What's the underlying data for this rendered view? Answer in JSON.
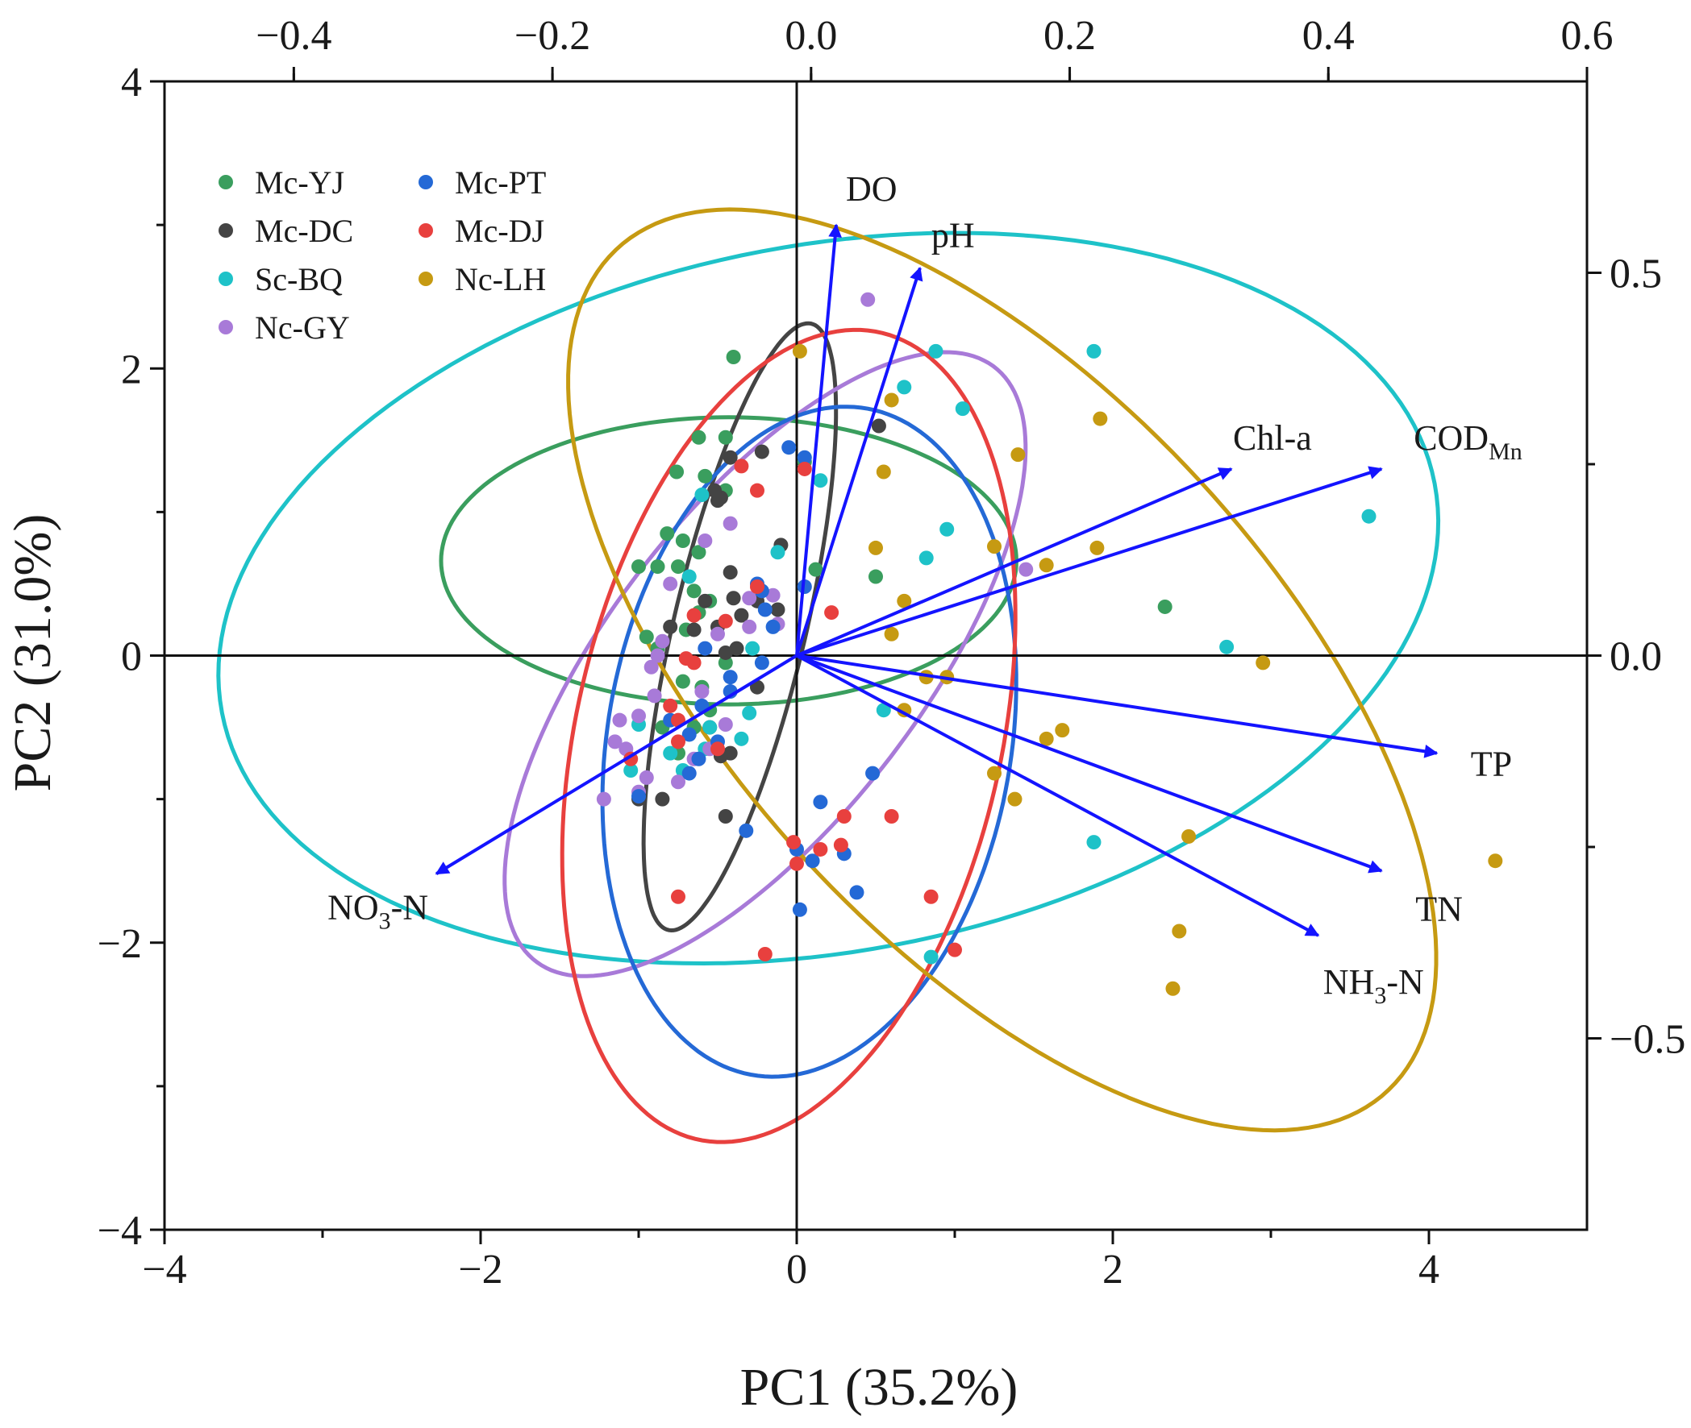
{
  "chart_data": {
    "type": "scatter",
    "title": "",
    "xlabel": "PC1 (35.2%)",
    "ylabel": "PC2 (31.0%)",
    "xlim": [
      -4,
      5
    ],
    "ylim": [
      -4,
      4
    ],
    "x_ticks": [
      {
        "value": -4,
        "label": "−4"
      },
      {
        "value": -2,
        "label": "−2"
      },
      {
        "value": 0,
        "label": "0"
      },
      {
        "value": 2,
        "label": "2"
      },
      {
        "value": 4,
        "label": "4"
      }
    ],
    "y_ticks": [
      {
        "value": -4,
        "label": "−4"
      },
      {
        "value": -2,
        "label": "−2"
      },
      {
        "value": 0,
        "label": "0"
      },
      {
        "value": 2,
        "label": "2"
      },
      {
        "value": 4,
        "label": "4"
      }
    ],
    "top_axis": {
      "range": [
        -0.5,
        0.6
      ],
      "ticks": [
        {
          "value": -0.4,
          "label": "−0.4"
        },
        {
          "value": -0.2,
          "label": "−0.2"
        },
        {
          "value": 0.0,
          "label": "0.0"
        },
        {
          "value": 0.2,
          "label": "0.2"
        },
        {
          "value": 0.4,
          "label": "0.4"
        },
        {
          "value": 0.6,
          "label": "0.6"
        }
      ]
    },
    "right_axis": {
      "range": [
        -0.75,
        0.75
      ],
      "ticks": [
        {
          "value": 0.5,
          "label": "0.5"
        },
        {
          "value": 0.0,
          "label": "0.0"
        },
        {
          "value": -0.5,
          "label": "−0.5"
        }
      ]
    },
    "legend_position": "top-left",
    "series": [
      {
        "name": "Mc-YJ",
        "color": "#3a9e5e",
        "points": [
          [
            -0.4,
            2.08
          ],
          [
            -0.62,
            1.52
          ],
          [
            -0.45,
            1.52
          ],
          [
            -0.58,
            1.25
          ],
          [
            -0.76,
            1.28
          ],
          [
            -0.45,
            1.15
          ],
          [
            -0.82,
            0.85
          ],
          [
            -0.62,
            0.72
          ],
          [
            -0.72,
            0.8
          ],
          [
            -0.75,
            0.62
          ],
          [
            -0.88,
            0.62
          ],
          [
            -1.0,
            0.62
          ],
          [
            -0.65,
            0.45
          ],
          [
            -0.55,
            0.38
          ],
          [
            -0.62,
            0.3
          ],
          [
            -0.7,
            0.18
          ],
          [
            -0.95,
            0.13
          ],
          [
            -0.88,
            0.05
          ],
          [
            -0.45,
            -0.05
          ],
          [
            -0.72,
            -0.18
          ],
          [
            -0.6,
            -0.22
          ],
          [
            -0.55,
            -0.38
          ],
          [
            -0.65,
            -0.5
          ],
          [
            -0.85,
            -0.5
          ],
          [
            -0.75,
            -0.68
          ],
          [
            0.05,
            1.35
          ],
          [
            0.12,
            0.6
          ],
          [
            2.33,
            0.34
          ],
          [
            0.5,
            0.55
          ]
        ]
      },
      {
        "name": "Mc-DC",
        "color": "#444444",
        "points": [
          [
            -0.48,
            1.1
          ],
          [
            -0.52,
            1.15
          ],
          [
            -0.42,
            1.38
          ],
          [
            -0.22,
            1.42
          ],
          [
            -0.5,
            1.08
          ],
          [
            -0.42,
            0.58
          ],
          [
            -0.1,
            0.77
          ],
          [
            -0.4,
            0.4
          ],
          [
            -0.58,
            0.38
          ],
          [
            -0.25,
            0.38
          ],
          [
            -0.12,
            0.32
          ],
          [
            -0.35,
            0.28
          ],
          [
            -0.5,
            0.2
          ],
          [
            -0.65,
            0.18
          ],
          [
            -0.8,
            0.2
          ],
          [
            -0.45,
            0.02
          ],
          [
            -0.38,
            0.05
          ],
          [
            -0.25,
            -0.22
          ],
          [
            -0.55,
            -0.5
          ],
          [
            -0.42,
            -0.68
          ],
          [
            -0.48,
            -0.7
          ],
          [
            -0.85,
            -1.0
          ],
          [
            -1.0,
            -1.0
          ],
          [
            -0.45,
            -1.12
          ],
          [
            0.52,
            1.6
          ]
        ]
      },
      {
        "name": "Sc-BQ",
        "color": "#1ec2c8",
        "points": [
          [
            0.88,
            2.12
          ],
          [
            1.88,
            2.12
          ],
          [
            0.68,
            1.87
          ],
          [
            1.05,
            1.72
          ],
          [
            -0.6,
            1.12
          ],
          [
            0.15,
            1.22
          ],
          [
            0.95,
            0.88
          ],
          [
            -0.12,
            0.72
          ],
          [
            0.82,
            0.68
          ],
          [
            -0.68,
            0.55
          ],
          [
            -0.28,
            0.05
          ],
          [
            -0.3,
            -0.4
          ],
          [
            -0.55,
            -0.5
          ],
          [
            -0.35,
            -0.58
          ],
          [
            -0.58,
            -0.65
          ],
          [
            -0.8,
            -0.68
          ],
          [
            -1.05,
            -0.8
          ],
          [
            -0.72,
            -0.8
          ],
          [
            -1.0,
            -0.48
          ],
          [
            0.55,
            -0.38
          ],
          [
            3.62,
            0.97
          ],
          [
            2.72,
            0.06
          ],
          [
            1.88,
            -1.3
          ],
          [
            0.85,
            -2.1
          ]
        ]
      },
      {
        "name": "Nc-GY",
        "color": "#a87ad8",
        "points": [
          [
            0.45,
            2.48
          ],
          [
            -0.42,
            0.92
          ],
          [
            -0.58,
            0.8
          ],
          [
            -0.8,
            0.5
          ],
          [
            -0.15,
            0.42
          ],
          [
            -0.12,
            0.22
          ],
          [
            -0.3,
            0.2
          ],
          [
            -0.5,
            0.15
          ],
          [
            -0.85,
            0.1
          ],
          [
            -0.88,
            0.0
          ],
          [
            -0.92,
            -0.08
          ],
          [
            -0.6,
            -0.25
          ],
          [
            -0.9,
            -0.28
          ],
          [
            -1.0,
            -0.42
          ],
          [
            -1.12,
            -0.45
          ],
          [
            -0.45,
            -0.48
          ],
          [
            -0.55,
            -0.65
          ],
          [
            -1.08,
            -0.65
          ],
          [
            -1.15,
            -0.6
          ],
          [
            -0.65,
            -0.72
          ],
          [
            -0.95,
            -0.85
          ],
          [
            -0.75,
            -0.88
          ],
          [
            -1.0,
            -0.95
          ],
          [
            -1.22,
            -1.0
          ],
          [
            1.45,
            0.6
          ],
          [
            -0.3,
            0.4
          ]
        ]
      },
      {
        "name": "Mc-PT",
        "color": "#2469d6",
        "points": [
          [
            -0.05,
            1.45
          ],
          [
            0.05,
            1.38
          ],
          [
            -0.25,
            0.5
          ],
          [
            0.05,
            0.48
          ],
          [
            -0.22,
            0.45
          ],
          [
            -0.2,
            0.32
          ],
          [
            -0.15,
            0.2
          ],
          [
            -0.58,
            0.05
          ],
          [
            -0.42,
            -0.15
          ],
          [
            -0.42,
            -0.25
          ],
          [
            -0.22,
            -0.05
          ],
          [
            -0.6,
            -0.35
          ],
          [
            -0.8,
            -0.45
          ],
          [
            -0.68,
            -0.55
          ],
          [
            -0.5,
            -0.6
          ],
          [
            -0.62,
            -0.72
          ],
          [
            -0.68,
            -0.82
          ],
          [
            -1.0,
            -0.98
          ],
          [
            0.48,
            -0.82
          ],
          [
            0.15,
            -1.02
          ],
          [
            -0.32,
            -1.22
          ],
          [
            0.0,
            -1.35
          ],
          [
            0.1,
            -1.43
          ],
          [
            0.3,
            -1.38
          ],
          [
            0.38,
            -1.65
          ],
          [
            0.02,
            -1.77
          ]
        ]
      },
      {
        "name": "Mc-DJ",
        "color": "#e8403e",
        "points": [
          [
            -0.35,
            1.32
          ],
          [
            -0.25,
            1.15
          ],
          [
            0.05,
            1.3
          ],
          [
            -0.25,
            0.48
          ],
          [
            -0.45,
            0.24
          ],
          [
            -0.65,
            0.28
          ],
          [
            -0.7,
            -0.02
          ],
          [
            -0.65,
            -0.05
          ],
          [
            -0.8,
            -0.35
          ],
          [
            -0.75,
            -0.45
          ],
          [
            -0.75,
            -0.6
          ],
          [
            -0.5,
            -0.65
          ],
          [
            -1.05,
            -0.72
          ],
          [
            0.22,
            0.3
          ],
          [
            0.3,
            -1.12
          ],
          [
            0.6,
            -1.12
          ],
          [
            -0.02,
            -1.3
          ],
          [
            0.0,
            -1.45
          ],
          [
            0.15,
            -1.35
          ],
          [
            0.28,
            -1.32
          ],
          [
            0.85,
            -1.68
          ],
          [
            -0.75,
            -1.68
          ],
          [
            -0.2,
            -2.08
          ],
          [
            1.0,
            -2.05
          ]
        ]
      },
      {
        "name": "Nc-LH",
        "color": "#c69a12",
        "points": [
          [
            0.02,
            2.12
          ],
          [
            0.6,
            1.78
          ],
          [
            1.92,
            1.65
          ],
          [
            1.4,
            1.4
          ],
          [
            0.55,
            1.28
          ],
          [
            1.25,
            0.76
          ],
          [
            1.9,
            0.75
          ],
          [
            0.5,
            0.75
          ],
          [
            1.58,
            0.63
          ],
          [
            0.68,
            0.38
          ],
          [
            0.6,
            0.15
          ],
          [
            2.95,
            -0.05
          ],
          [
            0.82,
            -0.15
          ],
          [
            0.95,
            -0.15
          ],
          [
            0.68,
            -0.38
          ],
          [
            1.68,
            -0.52
          ],
          [
            1.58,
            -0.58
          ],
          [
            1.25,
            -0.82
          ],
          [
            1.38,
            -1.0
          ],
          [
            4.42,
            -1.43
          ],
          [
            2.48,
            -1.26
          ],
          [
            2.42,
            -1.92
          ],
          [
            2.38,
            -2.32
          ]
        ]
      }
    ],
    "ellipses": [
      {
        "group": "Mc-YJ",
        "center": [
          -0.43,
          0.66
        ],
        "rx": 1.82,
        "ry": 1.0,
        "angle": 0
      },
      {
        "group": "Mc-DC",
        "center": [
          -0.36,
          0.2
        ],
        "rx": 2.16,
        "ry": 0.42,
        "angle": 78
      },
      {
        "group": "Sc-BQ",
        "center": [
          0.2,
          0.4
        ],
        "rx": 3.92,
        "ry": 2.45,
        "angle": 13
      },
      {
        "group": "Nc-GY",
        "center": [
          -0.2,
          -0.06
        ],
        "rx": 2.53,
        "ry": 1.02,
        "angle": 56
      },
      {
        "group": "Mc-PT",
        "center": [
          0.08,
          -0.6
        ],
        "rx": 2.35,
        "ry": 1.28,
        "angle": 82
      },
      {
        "group": "Mc-DJ",
        "center": [
          -0.05,
          -0.56
        ],
        "rx": 2.87,
        "ry": 1.35,
        "angle": 79
      },
      {
        "group": "Nc-LH",
        "center": [
          1.3,
          -0.1
        ],
        "rx": 3.82,
        "ry": 1.8,
        "angle": -52
      }
    ],
    "loadings": [
      {
        "name": "DO",
        "end": [
          0.25,
          3.0
        ]
      },
      {
        "name": "pH",
        "end": [
          0.78,
          2.7
        ]
      },
      {
        "name": "Chl-a",
        "end": [
          2.75,
          1.3
        ]
      },
      {
        "name": "COD",
        "sub": "Mn",
        "end": [
          3.7,
          1.3
        ]
      },
      {
        "name": "TP",
        "end": [
          4.05,
          -0.68
        ]
      },
      {
        "name": "TN",
        "end": [
          3.7,
          -1.5
        ]
      },
      {
        "name": "NH",
        "sub": "3",
        "suffix": "-N",
        "end": [
          3.3,
          -1.95
        ]
      },
      {
        "name": "NO",
        "sub": "3",
        "suffix": "-N",
        "end": [
          -2.28,
          -1.52
        ]
      }
    ]
  }
}
